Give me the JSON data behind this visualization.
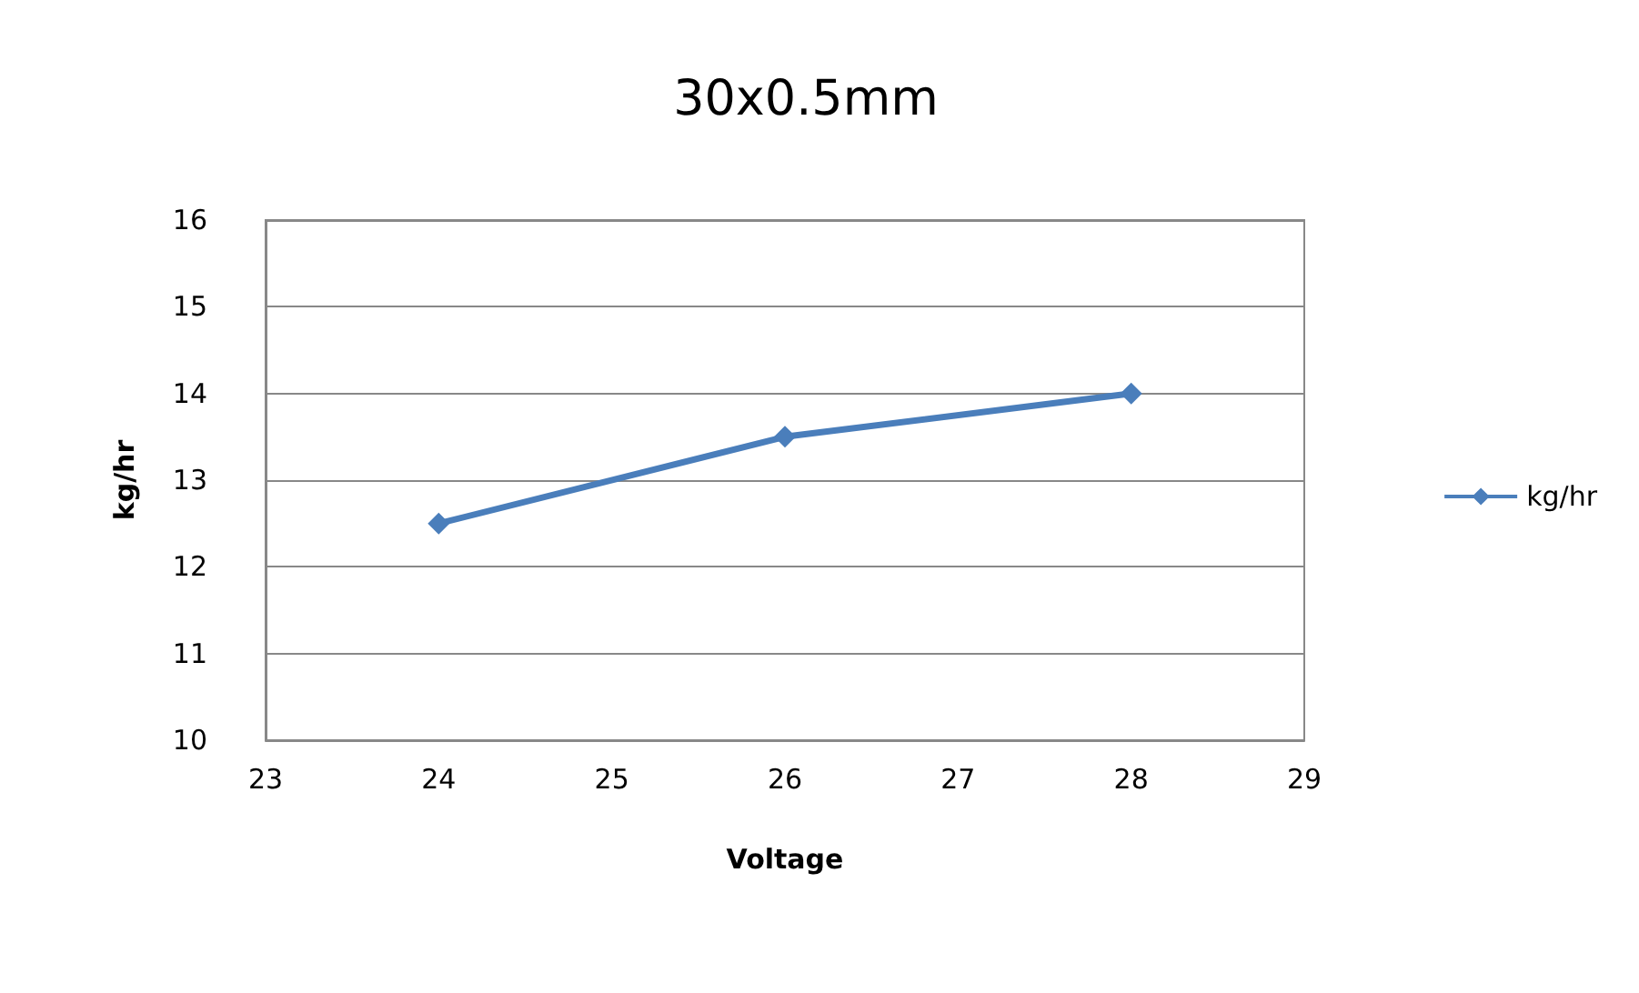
{
  "chart_data": {
    "type": "line",
    "title": "30x0.5mm",
    "xlabel": "Voltage",
    "ylabel": "kg/hr",
    "x": [
      24,
      26,
      28
    ],
    "series": [
      {
        "name": "kg/hr",
        "color": "#4a7ebb",
        "values": [
          12.5,
          13.5,
          14
        ]
      }
    ],
    "xlim": [
      23,
      29
    ],
    "xticks": [
      23,
      24,
      25,
      26,
      27,
      28,
      29
    ],
    "ylim": [
      10,
      16
    ],
    "yticks": [
      10,
      11,
      12,
      13,
      14,
      15,
      16
    ],
    "grid": "y",
    "legend": "right",
    "marker": "diamond",
    "line_style": "solid"
  }
}
